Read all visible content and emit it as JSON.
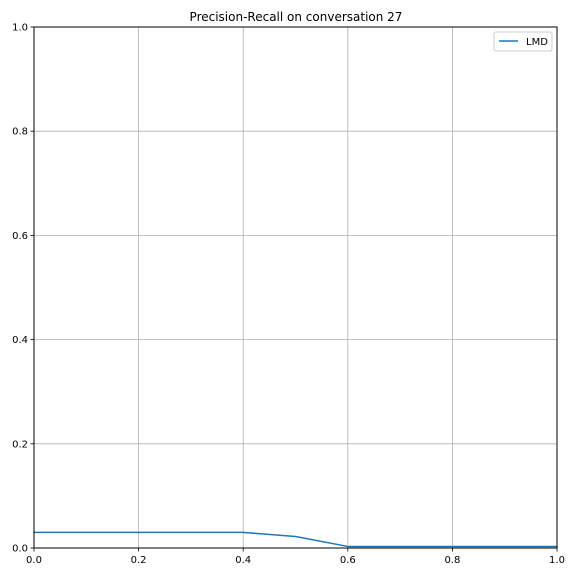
{
  "chart_data": {
    "type": "line",
    "title": "Precision-Recall on conversation 27",
    "xlabel": "",
    "ylabel": "",
    "xlim": [
      0,
      1
    ],
    "ylim": [
      0,
      1
    ],
    "xticks": [
      "0.0",
      "0.2",
      "0.4",
      "0.6",
      "0.8",
      "1.0"
    ],
    "yticks": [
      "0.0",
      "0.2",
      "0.4",
      "0.6",
      "0.8",
      "1.0"
    ],
    "grid": true,
    "legend_position": "top-right",
    "series": [
      {
        "name": "LMD",
        "color": "#1f77b4",
        "x": [
          0.0,
          0.1,
          0.2,
          0.3,
          0.4,
          0.5,
          0.6,
          0.7,
          0.8,
          0.9,
          1.0
        ],
        "y": [
          0.03,
          0.03,
          0.03,
          0.03,
          0.03,
          0.022,
          0.003,
          0.003,
          0.003,
          0.003,
          0.003
        ]
      }
    ]
  }
}
